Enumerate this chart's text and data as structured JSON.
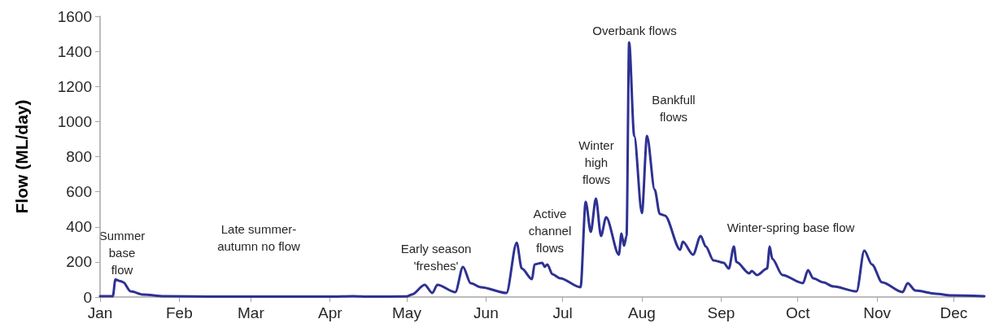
{
  "chart_data": {
    "type": "line",
    "ylabel": "Flow (ML/day)",
    "color": "#2e3192",
    "x": [
      "--01-01",
      "--01-06",
      "--01-07",
      "--01-09",
      "--01-10",
      "--01-13",
      "--01-18",
      "--01-26",
      "--02-15",
      "--04-01",
      "--04-10",
      "--04-16",
      "--05-01",
      "--05-03",
      "--05-08",
      "--05-11",
      "--05-13",
      "--05-20",
      "--05-23",
      "--05-26",
      "--05-30",
      "--06-09",
      "--06-13",
      "--06-15",
      "--06-19",
      "--06-20",
      "--06-23",
      "--06-24",
      "--06-25",
      "--06-27",
      "--06-30",
      "--07-08",
      "--07-10",
      "--07-12",
      "--07-14",
      "--07-16",
      "--07-18",
      "--07-23",
      "--07-24",
      "--07-25",
      "--07-26",
      "--07-27",
      "--07-29",
      "--08-01",
      "--08-03",
      "--08-06",
      "--08-08",
      "--08-10",
      "--08-16",
      "--08-17",
      "--08-21",
      "--08-24",
      "--08-26",
      "--08-29",
      "--09-02",
      "--09-04",
      "--09-06",
      "--09-07",
      "--09-12",
      "--09-13",
      "--09-15",
      "--09-19",
      "--09-20",
      "--09-21",
      "--09-25",
      "--10-03",
      "--10-05",
      "--10-07",
      "--10-11",
      "--10-15",
      "--10-24",
      "--10-27",
      "--10-30",
      "--11-03",
      "--11-11",
      "--11-13",
      "--11-16",
      "--11-24",
      "--11-30",
      "--12-13"
    ],
    "values": [
      5,
      5,
      100,
      90,
      85,
      32,
      14,
      5,
      2,
      2,
      5,
      2,
      3,
      14,
      70,
      23,
      70,
      28,
      172,
      79,
      56,
      23,
      310,
      162,
      102,
      186,
      195,
      172,
      186,
      130,
      107,
      56,
      543,
      371,
      561,
      348,
      455,
      241,
      362,
      292,
      348,
      1452,
      918,
      478,
      918,
      612,
      473,
      464,
      269,
      315,
      241,
      348,
      288,
      209,
      195,
      162,
      288,
      199,
      135,
      148,
      125,
      162,
      288,
      218,
      125,
      79,
      153,
      107,
      83,
      60,
      32,
      264,
      186,
      83,
      28,
      79,
      37,
      19,
      9,
      5
    ],
    "xlim": [
      "--01-01",
      "--12-13"
    ],
    "xticks": [
      {
        "value": "--01-01",
        "label": "Jan"
      },
      {
        "value": "--02-01",
        "label": "Feb"
      },
      {
        "value": "--03-01",
        "label": "Mar"
      },
      {
        "value": "--04-01",
        "label": "Apr"
      },
      {
        "value": "--05-01",
        "label": "May"
      },
      {
        "value": "--06-01",
        "label": "Jun"
      },
      {
        "value": "--07-01",
        "label": "Jul"
      },
      {
        "value": "--08-01",
        "label": "Aug"
      },
      {
        "value": "--09-01",
        "label": "Sep"
      },
      {
        "value": "--10-01",
        "label": "Oct"
      },
      {
        "value": "--11-01",
        "label": "Nov"
      },
      {
        "value": "--12-01",
        "label": "Dec"
      }
    ],
    "ylim": [
      0,
      1600
    ],
    "yticks": [
      0,
      200,
      400,
      600,
      800,
      1000,
      1200,
      1400,
      1600
    ],
    "grid": false,
    "marker": "none",
    "line_style": "solid",
    "annotations": [
      "Summer\nbase\nflow",
      "Late summer-\nautumn no flow",
      "Early season\n'freshes'",
      "Active\nchannel\nflows",
      "Winter\nhigh\nflows",
      "Overbank flows",
      "Bankfull\nflows",
      "Winter-spring base flow"
    ]
  }
}
